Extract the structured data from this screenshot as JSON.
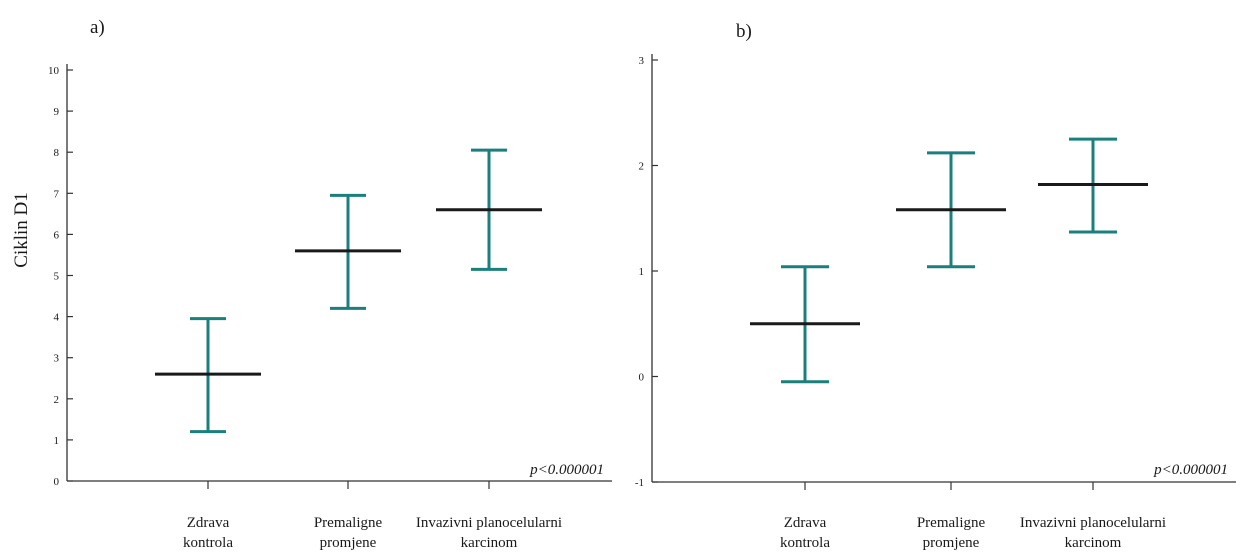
{
  "chart_data": [
    {
      "type": "errorbar",
      "panel_label": "a)",
      "ylabel": "Ciklin D1",
      "xlabel": "",
      "ylim": [
        0,
        10
      ],
      "yticks": [
        0,
        1,
        2,
        3,
        4,
        5,
        6,
        7,
        8,
        9,
        10
      ],
      "categories": [
        [
          "Zdrava",
          "kontrola"
        ],
        [
          "Premaligne",
          "promjene"
        ],
        [
          "Invazivni planocelularni",
          "karcinom"
        ]
      ],
      "mean": [
        2.6,
        5.6,
        6.6
      ],
      "lower": [
        1.2,
        4.2,
        5.15
      ],
      "upper": [
        3.95,
        6.95,
        8.05
      ],
      "annotation": "p<0.000001",
      "colors": {
        "mean": "#1a1a1a",
        "error": "#1b7f7c",
        "axis": "#333333"
      }
    },
    {
      "type": "errorbar",
      "panel_label": "b)",
      "ylabel": "",
      "xlabel": "",
      "ylim": [
        -1,
        3
      ],
      "yticks": [
        -1,
        0,
        1,
        2,
        3
      ],
      "categories": [
        [
          "Zdrava",
          "kontrola"
        ],
        [
          "Premaligne",
          "promjene"
        ],
        [
          "Invazivni planocelularni",
          "karcinom"
        ]
      ],
      "mean": [
        0.5,
        1.58,
        1.82
      ],
      "lower": [
        -0.05,
        1.04,
        1.37
      ],
      "upper": [
        1.04,
        2.12,
        2.25
      ],
      "annotation": "p<0.000001",
      "colors": {
        "mean": "#1a1a1a",
        "error": "#1b7f7c",
        "axis": "#333333"
      }
    }
  ]
}
